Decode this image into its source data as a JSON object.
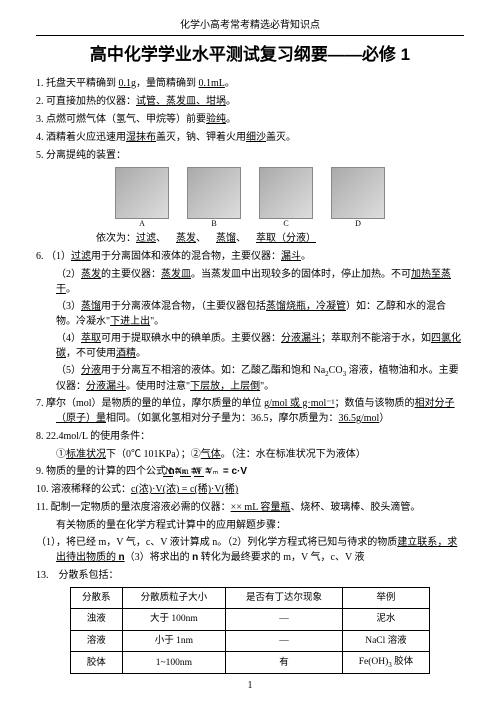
{
  "header": "化学小高考常考精选必背知识点",
  "title": "高中化学学业水平测试复习纲要——必修 1",
  "items": {
    "i1": "1.  托盘天平精确到 ",
    "i1a": "0.1g",
    "i1b": "，量筒精确到 ",
    "i1c": "0.1mL",
    "i1d": "。",
    "i2": "2.  可直接加热的仪器：",
    "i2a": "试管、蒸发皿、坩埚",
    "i2b": "。",
    "i3": "3.  点燃可燃气体（氢气、甲烷等）前要",
    "i3a": "验纯",
    "i3b": "。",
    "i4": "4.  酒精着火应迅速用",
    "i4a": "湿抹布",
    "i4b": "盖灭，钠、钾着火用",
    "i4c": "细沙",
    "i4d": "盖灭。",
    "i5": "5.  分离提纯的装置：",
    "caption_pre": "依次为：",
    "cap_a": "过滤",
    "cap_b": "蒸发",
    "cap_c": "蒸馏",
    "cap_d": "萃取（分液）",
    "lbl_a": "A",
    "lbl_b": "B",
    "lbl_c": "C",
    "lbl_d": "D",
    "i6": "6.  （1）",
    "i6_1a": "过滤",
    "i6_1b": "用于分离固体和液体的混合物，主要仪器：",
    "i6_1c": "漏斗",
    "i6_1d": "。",
    "i6_2a": "（2）",
    "i6_2b": "蒸发",
    "i6_2c": "的主要仪器：",
    "i6_2d": "蒸发皿",
    "i6_2e": "。当蒸发皿中出现较多的固体时，停止加热。不可",
    "i6_2f": "加热至蒸干",
    "i6_2g": "。",
    "i6_3a": "（3）",
    "i6_3b": "蒸馏",
    "i6_3c": "用于分离液体混合物，（主要仪器包括",
    "i6_3d": "蒸馏烧瓶，冷凝管",
    "i6_3e": "）如：乙醇和水的混合物。冷凝水\"",
    "i6_3f": "下进上出",
    "i6_3g": "\"。",
    "i6_4a": "（4）",
    "i6_4b": "萃取",
    "i6_4c": "可用于提取碘水中的碘单质。主要仪器：",
    "i6_4d": "分液漏斗",
    "i6_4e": "；萃取剂不能溶于水，如",
    "i6_4f": "四氯化碳",
    "i6_4g": "，不可使用",
    "i6_4h": "酒精",
    "i6_4i": "。",
    "i6_5a": "（5）",
    "i6_5b": "分液",
    "i6_5c": "用于分离互不相溶的液体。如：乙酸乙酯和饱和 Na",
    "i6_5c1": "2",
    "i6_5c2": "CO",
    "i6_5c3": "3",
    "i6_5c4": " 溶液，植物油和水。主要仪器：",
    "i6_5d": "分液漏斗",
    "i6_5e": "。使用时注意\"",
    "i6_5f": "下层放，上层倒",
    "i6_5g": "\"。",
    "i7": "7.  摩尔（mol）是物质的量的单位，摩尔质量的单位 ",
    "i7a": "g/mol 或 g·mol⁻¹",
    "i7b": "；数值与该物质的",
    "i7c": "相对分子（原子）量",
    "i7d": "相同。（如氯化氢相对分子量为：36.5，摩尔质量为：",
    "i7e": "36.5g/mol",
    "i7f": "）",
    "i8": "8.  22.4mol/L 的使用条件：",
    "i8a": "①",
    "i8b": "标准状况",
    "i8c": "下（0℃  101KPa）；②",
    "i8d": "气体",
    "i8e": "。（注：水在标准状况下为液体）",
    "i9": "9.  物质的量的计算的四个公式 ：",
    "f_n1n": "N",
    "f_n1d": "Nᴀ",
    "f_eq": " = ",
    "f_n2n": "m",
    "f_n2d": "M",
    "f_n3n": "V",
    "f_n3d": "Vₘ",
    "f_tail": " = c·V",
    "f_head": "n=",
    "i10": "10.  溶液稀释的公式：",
    "i10a": "c(浓)·V(浓) = c(稀)·V(稀)",
    "i11": "11.  配制一定物质的量浓度溶液必需的仪器：",
    "i11a": "××  mL 容量瓶",
    "i11b": "、烧杯、玻璃棒、胶头滴管。",
    "i12": "有关物质的量在化学方程式计算中的应用解题步骤：",
    "i12a": "（1），将已经  m，V 气，c、V 液计算成 n。（2）列化学方程式将已知与待求的物质",
    "i12b": "建立联系",
    "i12c": "，求出待出物质的 ",
    "i12cc": "n",
    "i12d": "（3）将求出的 ",
    "i12dd": "n",
    "i12e": " 转化为最终要求的  m，V 气，c、V 液",
    "i13": "13.",
    "i13a": "分散系包括：",
    "th1": "分散系",
    "th2": "分散质粒子大小",
    "th3": "是否有丁达尔现象",
    "th4": "举例",
    "r1c1": "浊液",
    "r1c2": "大于 100nm",
    "r1c3": "—",
    "r1c4": "泥水",
    "r2c1": "溶液",
    "r2c2": "小于 1nm",
    "r2c3": "—",
    "r2c4": "NaCl 溶液",
    "r3c1": "胶体",
    "r3c2": "1~100nm",
    "r3c3": "有",
    "r3c4a": "Fe(OH)",
    "r3c4b": "3",
    "r3c4c": " 胶体",
    "pageno": "1"
  }
}
